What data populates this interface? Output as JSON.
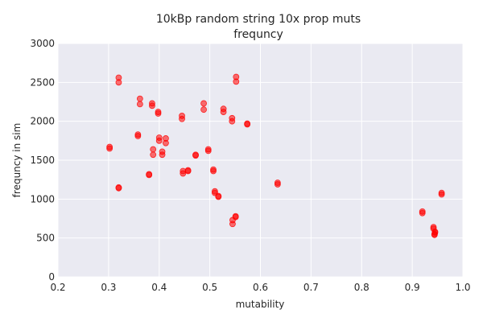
{
  "chart_data": {
    "type": "scatter",
    "title": "10kBp random string   10x prop muts\nfrequncy",
    "xlabel": "mutability",
    "ylabel": "frequncy in sim",
    "xlim": [
      0.2,
      1.0
    ],
    "ylim": [
      0,
      3000
    ],
    "x_ticks": [
      "0.2",
      "0.3",
      "0.4",
      "0.5",
      "0.6",
      "0.7",
      "0.8",
      "0.9",
      "1.0"
    ],
    "y_ticks": [
      "0",
      "500",
      "1000",
      "1500",
      "2000",
      "2500",
      "3000"
    ],
    "grid": true,
    "background_color": "#EAEAF2",
    "marker_color": "#FF0000",
    "series": [
      {
        "points": [
          [
            0.302,
            1650
          ],
          [
            0.302,
            1670
          ],
          [
            0.32,
            2500
          ],
          [
            0.32,
            2560
          ],
          [
            0.32,
            1140
          ],
          [
            0.32,
            1150
          ],
          [
            0.358,
            1810
          ],
          [
            0.358,
            1830
          ],
          [
            0.362,
            2220
          ],
          [
            0.362,
            2290
          ],
          [
            0.38,
            1310
          ],
          [
            0.38,
            1320
          ],
          [
            0.386,
            2200
          ],
          [
            0.386,
            2230
          ],
          [
            0.388,
            1570
          ],
          [
            0.388,
            1640
          ],
          [
            0.398,
            2100
          ],
          [
            0.398,
            2120
          ],
          [
            0.4,
            1750
          ],
          [
            0.4,
            1790
          ],
          [
            0.406,
            1570
          ],
          [
            0.406,
            1610
          ],
          [
            0.413,
            1720
          ],
          [
            0.413,
            1780
          ],
          [
            0.445,
            2030
          ],
          [
            0.445,
            2070
          ],
          [
            0.447,
            1330
          ],
          [
            0.447,
            1360
          ],
          [
            0.457,
            1360
          ],
          [
            0.457,
            1370
          ],
          [
            0.472,
            1560
          ],
          [
            0.472,
            1570
          ],
          [
            0.488,
            2150
          ],
          [
            0.488,
            2230
          ],
          [
            0.497,
            1620
          ],
          [
            0.497,
            1640
          ],
          [
            0.507,
            1360
          ],
          [
            0.507,
            1380
          ],
          [
            0.51,
            1080
          ],
          [
            0.51,
            1100
          ],
          [
            0.517,
            1030
          ],
          [
            0.517,
            1040
          ],
          [
            0.527,
            2120
          ],
          [
            0.527,
            2160
          ],
          [
            0.544,
            2000
          ],
          [
            0.544,
            2040
          ],
          [
            0.545,
            680
          ],
          [
            0.545,
            730
          ],
          [
            0.551,
            770
          ],
          [
            0.551,
            780
          ],
          [
            0.552,
            2510
          ],
          [
            0.552,
            2570
          ],
          [
            0.574,
            1960
          ],
          [
            0.574,
            1970
          ],
          [
            0.634,
            1190
          ],
          [
            0.634,
            1210
          ],
          [
            0.92,
            820
          ],
          [
            0.92,
            840
          ],
          [
            0.942,
            620
          ],
          [
            0.942,
            640
          ],
          [
            0.944,
            540
          ],
          [
            0.944,
            550
          ],
          [
            0.945,
            570
          ],
          [
            0.945,
            580
          ],
          [
            0.958,
            1060
          ],
          [
            0.958,
            1080
          ]
        ]
      }
    ]
  }
}
